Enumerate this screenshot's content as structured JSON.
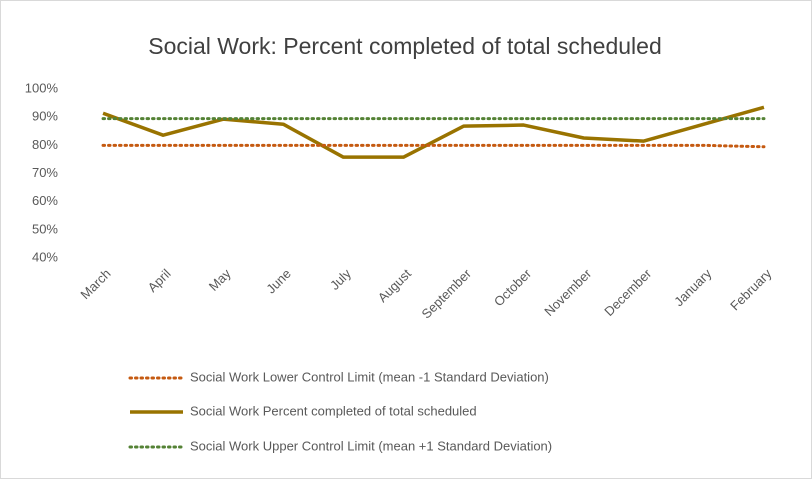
{
  "chart_data": {
    "type": "line",
    "title": "Social Work: Percent completed of total scheduled",
    "categories": [
      "March",
      "April",
      "May",
      "June",
      "July",
      "August",
      "September",
      "October",
      "November",
      "December",
      "January",
      "February"
    ],
    "series": [
      {
        "name": "Social Work Lower Control Limit (mean -1 Standard Deviation)",
        "color": "#c55a11",
        "dash": "dotted",
        "values": [
          80,
          80,
          80,
          80,
          80,
          80,
          80,
          80,
          80,
          80,
          80,
          79.5
        ]
      },
      {
        "name": "Social Work Percent completed of total scheduled",
        "color": "#997300",
        "dash": "solid",
        "values": [
          91.4,
          83.6,
          89.3,
          87.5,
          75.8,
          75.8,
          86.8,
          87.2,
          82.6,
          81.5,
          87.5,
          93.5
        ]
      },
      {
        "name": "Social Work Upper Control Limit (mean +1 Standard Deviation)",
        "color": "#548235",
        "dash": "dotted",
        "values": [
          89.5,
          89.5,
          89.5,
          89.5,
          89.5,
          89.5,
          89.5,
          89.5,
          89.5,
          89.5,
          89.5,
          89.5
        ]
      }
    ],
    "ylim": [
      40,
      100
    ],
    "yticks": [
      {
        "value": 40,
        "label": "40%"
      },
      {
        "value": 50,
        "label": "50%"
      },
      {
        "value": 60,
        "label": "60%"
      },
      {
        "value": 70,
        "label": "70%"
      },
      {
        "value": 80,
        "label": "80%"
      },
      {
        "value": 90,
        "label": "90%"
      },
      {
        "value": 100,
        "label": "100%"
      }
    ],
    "grid": false,
    "legend": "bottom"
  }
}
